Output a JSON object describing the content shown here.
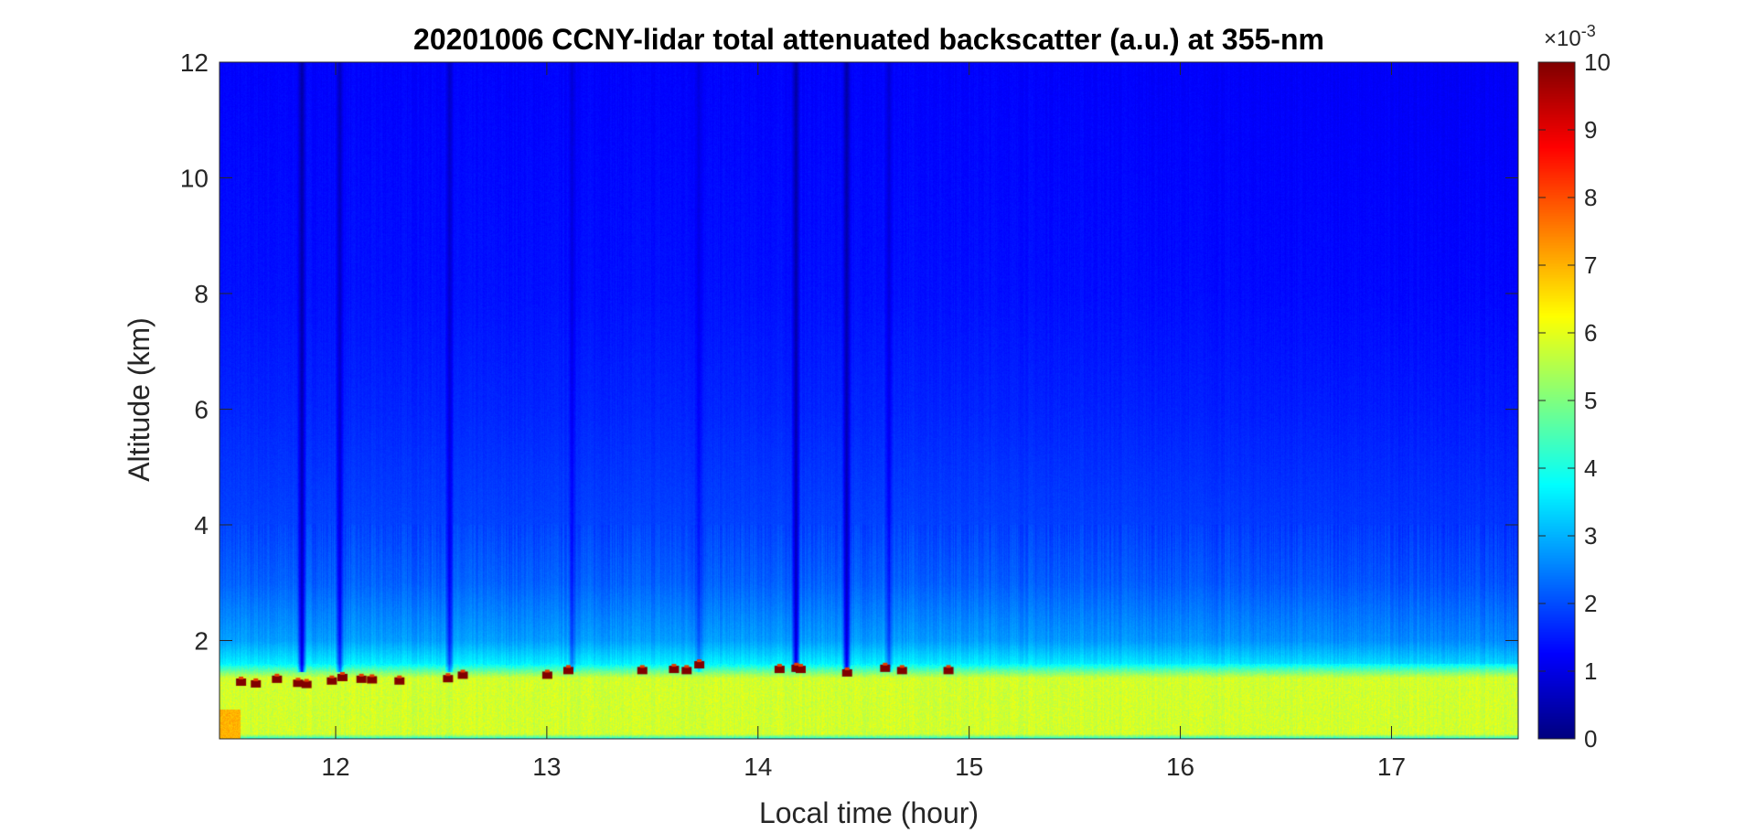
{
  "chart_data": {
    "type": "heatmap",
    "title": "20201006 CCNY-lidar total attenuated backscatter (a.u.) at 355-nm",
    "xlabel": "Local time (hour)",
    "ylabel": "Altitude (km)",
    "xlim": [
      11.45,
      17.6
    ],
    "ylim": [
      0.3,
      12
    ],
    "x_ticks": [
      "12",
      "13",
      "14",
      "15",
      "16",
      "17"
    ],
    "y_ticks": [
      "2",
      "4",
      "6",
      "8",
      "10",
      "12"
    ],
    "colormap": "jet",
    "colorbar": {
      "min": 0,
      "max": 10,
      "ticks": [
        "0",
        "1",
        "2",
        "3",
        "4",
        "5",
        "6",
        "7",
        "8",
        "9",
        "10"
      ],
      "multiplier": "×10",
      "exponent": "-3"
    },
    "boundary_layer_top_km": 1.5,
    "profile_levels_1e-3": {
      "near_surface_0.3km": 4.0,
      "boundary_layer_0.5_1.4km": 5.8,
      "top_of_layer_1.6km": 3.6,
      "2km": 2.8,
      "3km": 2.2,
      "4km": 1.9,
      "6km": 1.6,
      "8km": 1.4,
      "12km": 1.25
    },
    "cloud_tops_km": [
      {
        "t": 11.55,
        "z": 1.28
      },
      {
        "t": 11.62,
        "z": 1.25
      },
      {
        "t": 11.72,
        "z": 1.33
      },
      {
        "t": 11.82,
        "z": 1.26
      },
      {
        "t": 11.86,
        "z": 1.24
      },
      {
        "t": 11.98,
        "z": 1.3
      },
      {
        "t": 12.03,
        "z": 1.36
      },
      {
        "t": 12.12,
        "z": 1.33
      },
      {
        "t": 12.17,
        "z": 1.32
      },
      {
        "t": 12.3,
        "z": 1.3
      },
      {
        "t": 12.53,
        "z": 1.34
      },
      {
        "t": 12.6,
        "z": 1.4
      },
      {
        "t": 13.0,
        "z": 1.4
      },
      {
        "t": 13.1,
        "z": 1.48
      },
      {
        "t": 13.45,
        "z": 1.48
      },
      {
        "t": 13.6,
        "z": 1.5
      },
      {
        "t": 13.66,
        "z": 1.48
      },
      {
        "t": 13.72,
        "z": 1.58
      },
      {
        "t": 14.1,
        "z": 1.5
      },
      {
        "t": 14.18,
        "z": 1.52
      },
      {
        "t": 14.2,
        "z": 1.5
      },
      {
        "t": 14.42,
        "z": 1.44
      },
      {
        "t": 14.6,
        "z": 1.52
      },
      {
        "t": 14.68,
        "z": 1.48
      },
      {
        "t": 14.9,
        "z": 1.48
      }
    ],
    "cloud_shadows_hour": [
      {
        "t": 11.84,
        "strength": 1.0
      },
      {
        "t": 12.02,
        "strength": 0.7
      },
      {
        "t": 12.54,
        "strength": 0.6
      },
      {
        "t": 13.12,
        "strength": 0.4
      },
      {
        "t": 13.72,
        "strength": 0.35
      },
      {
        "t": 14.18,
        "strength": 1.0
      },
      {
        "t": 14.42,
        "strength": 1.0
      },
      {
        "t": 14.62,
        "strength": 0.5
      }
    ]
  }
}
